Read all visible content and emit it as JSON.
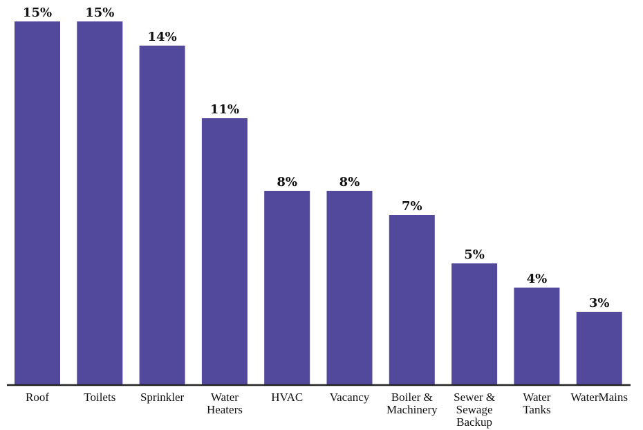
{
  "chart_data": {
    "type": "bar",
    "categories": [
      [
        "Roof"
      ],
      [
        "Toilets"
      ],
      [
        "Sprinkler"
      ],
      [
        "Water",
        "Heaters"
      ],
      [
        "HVAC"
      ],
      [
        "Vacancy"
      ],
      [
        "Boiler &",
        "Machinery"
      ],
      [
        "Sewer &",
        "Sewage",
        "Backup"
      ],
      [
        "Water",
        "Tanks"
      ],
      [
        "WaterMains"
      ]
    ],
    "values": [
      15,
      15,
      14,
      11,
      8,
      8,
      7,
      5,
      4,
      3
    ],
    "value_labels": [
      "15%",
      "15%",
      "14%",
      "11%",
      "8%",
      "8%",
      "7%",
      "5%",
      "4%",
      "3%"
    ],
    "title": "",
    "xlabel": "",
    "ylabel": "",
    "ylim": [
      0,
      15
    ],
    "grid": false,
    "colors": {
      "bar": "#52489c",
      "axis": "#222222"
    }
  }
}
